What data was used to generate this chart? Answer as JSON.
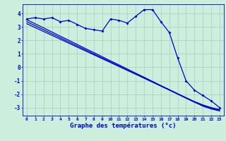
{
  "xlabel": "Graphe des températures (°c)",
  "background_color": "#cceedd",
  "grid_color": "#aaccbb",
  "line_color": "#0000cc",
  "x_ticks": [
    0,
    1,
    2,
    3,
    4,
    5,
    6,
    7,
    8,
    9,
    10,
    11,
    12,
    13,
    14,
    15,
    16,
    17,
    18,
    19,
    20,
    21,
    22,
    23
  ],
  "ylim": [
    -3.6,
    4.7
  ],
  "xlim": [
    -0.5,
    23.5
  ],
  "yticks": [
    -3,
    -2,
    -1,
    0,
    1,
    2,
    3,
    4
  ],
  "series1": [
    3.6,
    3.7,
    3.6,
    3.7,
    3.4,
    3.5,
    3.2,
    2.9,
    2.8,
    2.7,
    3.6,
    3.5,
    3.3,
    3.8,
    4.3,
    4.3,
    3.4,
    2.6,
    0.7,
    -1.0,
    -1.7,
    -2.1,
    -2.5,
    -3.0
  ],
  "series2": [
    3.55,
    3.24,
    2.94,
    2.63,
    2.32,
    2.02,
    1.71,
    1.4,
    1.1,
    0.79,
    0.48,
    0.18,
    -0.13,
    -0.44,
    -0.74,
    -1.05,
    -1.36,
    -1.66,
    -1.97,
    -2.28,
    -2.58,
    -2.89,
    -3.1,
    -3.25
  ],
  "series3": [
    3.4,
    3.1,
    2.8,
    2.5,
    2.2,
    1.9,
    1.6,
    1.3,
    1.0,
    0.7,
    0.4,
    0.1,
    -0.2,
    -0.5,
    -0.8,
    -1.1,
    -1.4,
    -1.7,
    -2.0,
    -2.3,
    -2.6,
    -2.85,
    -3.05,
    -3.2
  ],
  "series4": [
    3.25,
    2.96,
    2.67,
    2.38,
    2.09,
    1.8,
    1.51,
    1.22,
    0.93,
    0.64,
    0.35,
    0.06,
    -0.23,
    -0.52,
    -0.81,
    -1.1,
    -1.39,
    -1.68,
    -1.97,
    -2.26,
    -2.55,
    -2.8,
    -3.0,
    -3.15
  ]
}
